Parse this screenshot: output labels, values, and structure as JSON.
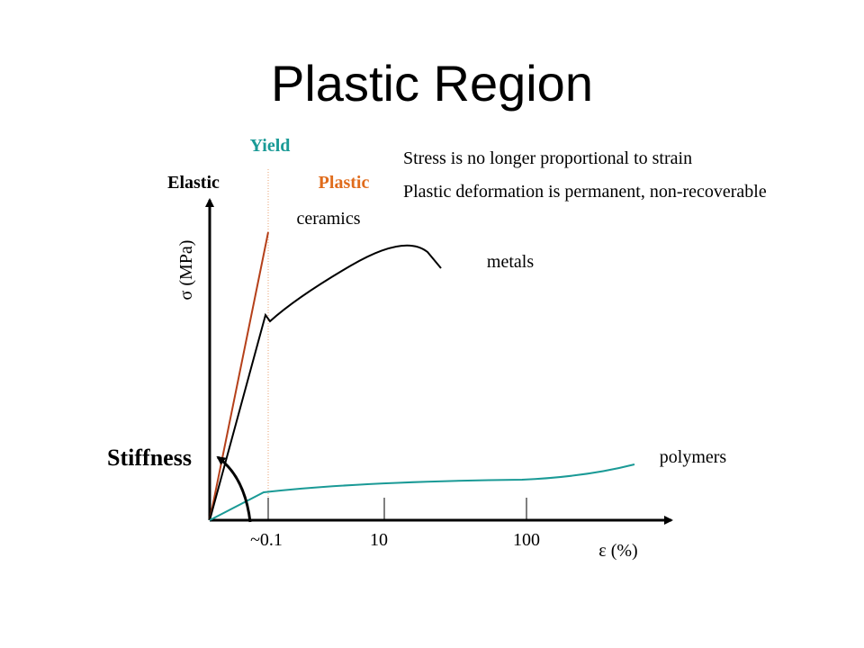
{
  "title": "Plastic Region",
  "notes": [
    "Stress is no longer proportional to strain",
    "Plastic deformation is permanent, non-recoverable"
  ],
  "regions": {
    "yield": "Yield",
    "elastic": "Elastic",
    "plastic": "Plastic"
  },
  "axes": {
    "y_label": "σ (MPa)",
    "x_label": "ε (%)",
    "x_tick_labels": [
      "~0.1",
      "10",
      "100"
    ]
  },
  "curves": {
    "ceramics": "ceramics",
    "metals": "metals",
    "polymers": "polymers"
  },
  "stiffness_label": "Stiffness"
}
